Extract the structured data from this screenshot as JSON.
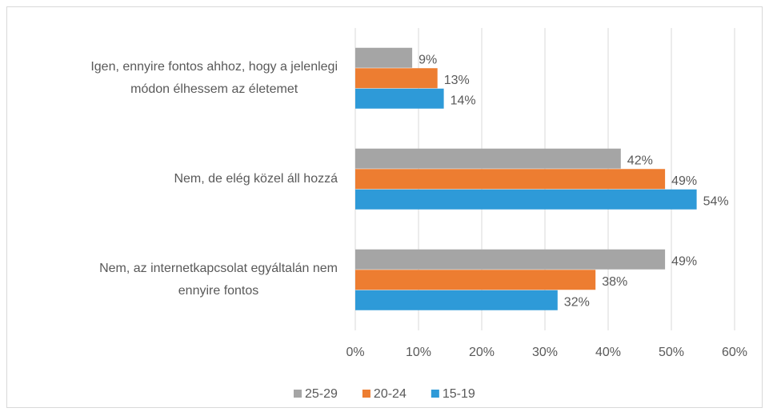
{
  "chart_data": {
    "type": "hbar",
    "categories": [
      [
        "Igen, ennyire fontos ahhoz, hogy a jelenlegi",
        "módon élhessem az életemet"
      ],
      [
        "Nem, de elég közel áll hozzá"
      ],
      [
        "Nem, az internetkapcsolat egyáltalán nem",
        "ennyire fontos"
      ]
    ],
    "series": [
      {
        "name": "25-29",
        "color": "#a5a5a5",
        "values": [
          9,
          42,
          49
        ],
        "value_labels": [
          "9%",
          "42%",
          "49%"
        ]
      },
      {
        "name": "20-24",
        "color": "#ed7d31",
        "values": [
          13,
          49,
          38
        ],
        "value_labels": [
          "13%",
          "49%",
          "38%"
        ]
      },
      {
        "name": "15-19",
        "color": "#2e9ad8",
        "values": [
          14,
          54,
          32
        ],
        "value_labels": [
          "14%",
          "54%",
          "32%"
        ]
      }
    ],
    "xlim": [
      0,
      60
    ],
    "xticks": [
      {
        "value": 0,
        "label": "0%"
      },
      {
        "value": 10,
        "label": "10%"
      },
      {
        "value": 20,
        "label": "20%"
      },
      {
        "value": 30,
        "label": "30%"
      },
      {
        "value": 40,
        "label": "40%"
      },
      {
        "value": 50,
        "label": "50%"
      },
      {
        "value": 60,
        "label": "60%"
      }
    ],
    "grid": true,
    "legend": "bottom"
  }
}
